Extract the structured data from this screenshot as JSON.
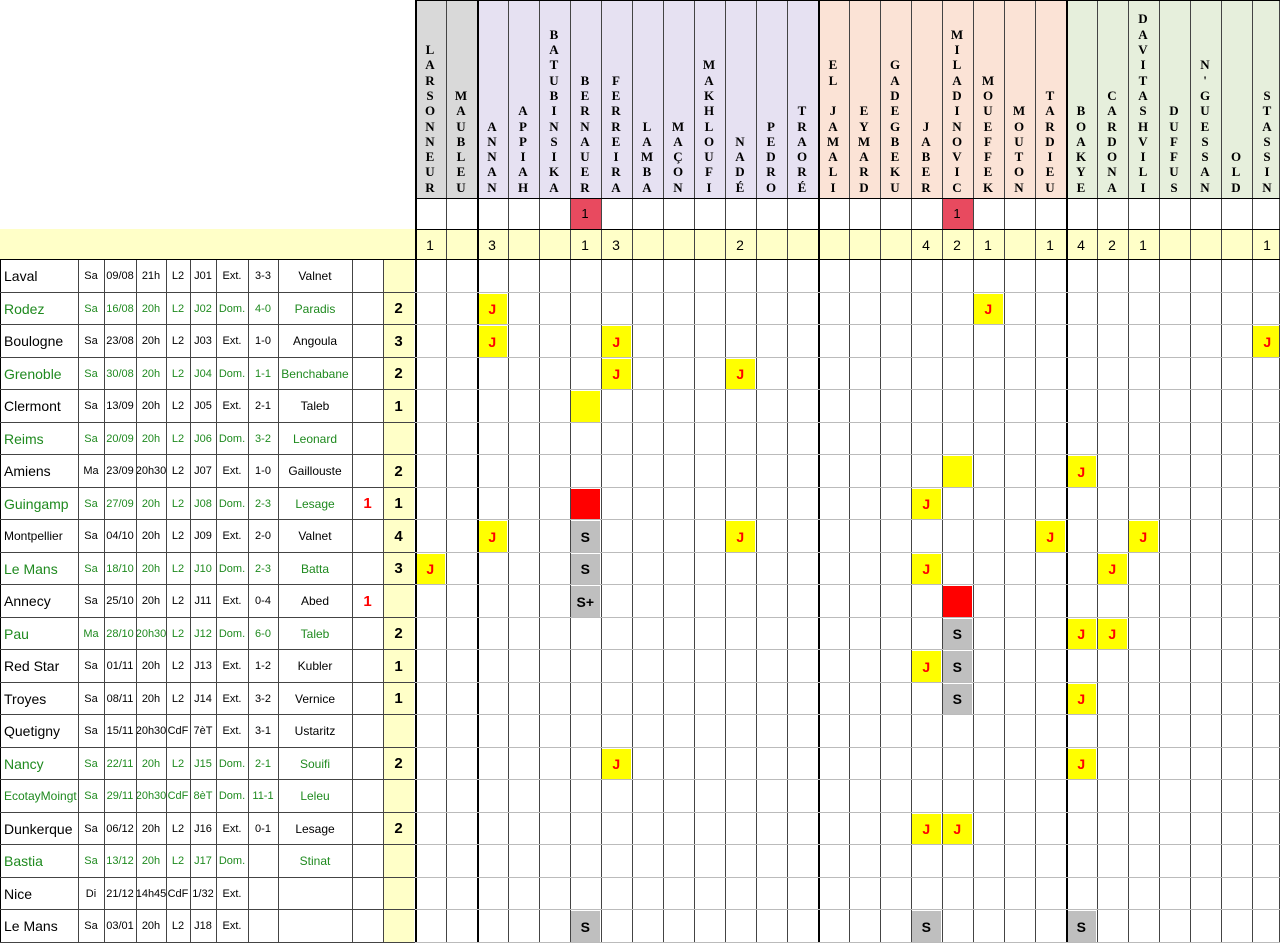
{
  "colors": {
    "green_text": "#1f8a1f",
    "yellow_card": "#ffff00",
    "red_card": "#ff0000",
    "suspended": "#bfbfbf",
    "header_red_bg": "#e84a5f",
    "total_row_bg": "#ffffc8",
    "group_gray": "#d9d9d9",
    "group_lavender": "#e6e1f2",
    "group_salmon": "#fbe3d6",
    "group_green": "#e6efdc"
  },
  "players": [
    {
      "name": "LARSONNEUR",
      "group": "gray",
      "red": "",
      "total": "1"
    },
    {
      "name": "MAUBLEU",
      "group": "gray",
      "red": "",
      "total": ""
    },
    {
      "name": "ANNAN",
      "group": "lavender",
      "red": "",
      "total": "3"
    },
    {
      "name": "APPIAH",
      "group": "lavender",
      "red": "",
      "total": ""
    },
    {
      "name": "BATUBINSIKA",
      "group": "lavender",
      "red": "",
      "total": ""
    },
    {
      "name": "BERNAUER",
      "group": "lavender",
      "red": "1",
      "total": "1"
    },
    {
      "name": "FERREIRA",
      "group": "lavender",
      "red": "",
      "total": "3"
    },
    {
      "name": "LAMBA",
      "group": "lavender",
      "red": "",
      "total": ""
    },
    {
      "name": "MAÇON",
      "group": "lavender",
      "red": "",
      "total": ""
    },
    {
      "name": "MAKHLOUFI",
      "group": "lavender",
      "red": "",
      "total": ""
    },
    {
      "name": "NADÉ",
      "group": "lavender",
      "red": "",
      "total": "2"
    },
    {
      "name": "PEDRO",
      "group": "lavender",
      "red": "",
      "total": ""
    },
    {
      "name": "TRAORÉ",
      "group": "lavender",
      "red": "",
      "total": ""
    },
    {
      "name": "EL JAMALI",
      "group": "salmon",
      "red": "",
      "total": ""
    },
    {
      "name": "EYMARD",
      "group": "salmon",
      "red": "",
      "total": ""
    },
    {
      "name": "GADEGBEKU",
      "group": "salmon",
      "red": "",
      "total": ""
    },
    {
      "name": "JABER",
      "group": "salmon",
      "red": "",
      "total": "4"
    },
    {
      "name": "MILADINOVIC",
      "group": "salmon",
      "red": "1",
      "total": "2"
    },
    {
      "name": "MOUEFFEK",
      "group": "salmon",
      "red": "",
      "total": "1"
    },
    {
      "name": "MOUTON",
      "group": "salmon",
      "red": "",
      "total": ""
    },
    {
      "name": "TARDIEU",
      "group": "salmon",
      "red": "",
      "total": "1"
    },
    {
      "name": "BOAKYE",
      "group": "green",
      "red": "",
      "total": "4"
    },
    {
      "name": "CARDONA",
      "group": "green",
      "red": "",
      "total": "2"
    },
    {
      "name": "DAVITASHVILI",
      "group": "green",
      "red": "",
      "total": "1"
    },
    {
      "name": "DUFFUS",
      "group": "green",
      "red": "",
      "total": ""
    },
    {
      "name": "N'GUESSAN",
      "group": "green",
      "red": "",
      "total": ""
    },
    {
      "name": "OLD",
      "group": "green",
      "red": "",
      "total": ""
    },
    {
      "name": "STASSIN",
      "group": "green",
      "red": "",
      "total": "1"
    }
  ],
  "matches": [
    {
      "opponent": "Laval",
      "day": "Sa",
      "date": "09/08",
      "time": "21h",
      "comp": "L2",
      "round": "J01",
      "venue": "Ext.",
      "score": "3-3",
      "referee": "Valnet",
      "reds": "",
      "yellows": "",
      "marks": []
    },
    {
      "opponent": "Rodez",
      "day": "Sa",
      "date": "16/08",
      "time": "20h",
      "comp": "L2",
      "round": "J02",
      "venue": "Dom.",
      "score": "4-0",
      "referee": "Paradis",
      "reds": "",
      "yellows": "2",
      "marks": [
        [
          2,
          "J"
        ],
        [
          18,
          "J"
        ]
      ]
    },
    {
      "opponent": "Boulogne",
      "day": "Sa",
      "date": "23/08",
      "time": "20h",
      "comp": "L2",
      "round": "J03",
      "venue": "Ext.",
      "score": "1-0",
      "referee": "Angoula",
      "reds": "",
      "yellows": "3",
      "marks": [
        [
          2,
          "J"
        ],
        [
          6,
          "J"
        ],
        [
          27,
          "J"
        ]
      ]
    },
    {
      "opponent": "Grenoble",
      "day": "Sa",
      "date": "30/08",
      "time": "20h",
      "comp": "L2",
      "round": "J04",
      "venue": "Dom.",
      "score": "1-1",
      "referee": "Benchabane",
      "reds": "",
      "yellows": "2",
      "marks": [
        [
          6,
          "J"
        ],
        [
          10,
          "J"
        ]
      ]
    },
    {
      "opponent": "Clermont",
      "day": "Sa",
      "date": "13/09",
      "time": "20h",
      "comp": "L2",
      "round": "J05",
      "venue": "Ext.",
      "score": "2-1",
      "referee": "Taleb",
      "reds": "",
      "yellows": "1",
      "marks": [
        [
          5,
          "Y"
        ]
      ]
    },
    {
      "opponent": "Reims",
      "day": "Sa",
      "date": "20/09",
      "time": "20h",
      "comp": "L2",
      "round": "J06",
      "venue": "Dom.",
      "score": "3-2",
      "referee": "Leonard",
      "reds": "",
      "yellows": "",
      "marks": []
    },
    {
      "opponent": "Amiens",
      "day": "Ma",
      "date": "23/09",
      "time": "20h30",
      "comp": "L2",
      "round": "J07",
      "venue": "Ext.",
      "score": "1-0",
      "referee": "Gaillouste",
      "reds": "",
      "yellows": "2",
      "marks": [
        [
          17,
          "Y"
        ],
        [
          21,
          "J"
        ]
      ]
    },
    {
      "opponent": "Guingamp",
      "day": "Sa",
      "date": "27/09",
      "time": "20h",
      "comp": "L2",
      "round": "J08",
      "venue": "Dom.",
      "score": "2-3",
      "referee": "Lesage",
      "reds": "1",
      "yellows": "1",
      "marks": [
        [
          5,
          "R"
        ],
        [
          16,
          "J"
        ]
      ]
    },
    {
      "opponent": "Montpellier",
      "day": "Sa",
      "date": "04/10",
      "time": "20h",
      "comp": "L2",
      "round": "J09",
      "venue": "Ext.",
      "score": "2-0",
      "referee": "Valnet",
      "reds": "",
      "yellows": "4",
      "marks": [
        [
          2,
          "J"
        ],
        [
          5,
          "S"
        ],
        [
          10,
          "J"
        ],
        [
          20,
          "J"
        ],
        [
          23,
          "J"
        ]
      ]
    },
    {
      "opponent": "Le Mans",
      "day": "Sa",
      "date": "18/10",
      "time": "20h",
      "comp": "L2",
      "round": "J10",
      "venue": "Dom.",
      "score": "2-3",
      "referee": "Batta",
      "reds": "",
      "yellows": "3",
      "marks": [
        [
          0,
          "J"
        ],
        [
          5,
          "S"
        ],
        [
          16,
          "J"
        ],
        [
          22,
          "J"
        ]
      ]
    },
    {
      "opponent": "Annecy",
      "day": "Sa",
      "date": "25/10",
      "time": "20h",
      "comp": "L2",
      "round": "J11",
      "venue": "Ext.",
      "score": "0-4",
      "referee": "Abed",
      "reds": "1",
      "yellows": "",
      "marks": [
        [
          5,
          "S+"
        ],
        [
          17,
          "R"
        ]
      ]
    },
    {
      "opponent": "Pau",
      "day": "Ma",
      "date": "28/10",
      "time": "20h30",
      "comp": "L2",
      "round": "J12",
      "venue": "Dom.",
      "score": "6-0",
      "referee": "Taleb",
      "reds": "",
      "yellows": "2",
      "marks": [
        [
          17,
          "S"
        ],
        [
          21,
          "J"
        ],
        [
          22,
          "J"
        ]
      ]
    },
    {
      "opponent": "Red Star",
      "day": "Sa",
      "date": "01/11",
      "time": "20h",
      "comp": "L2",
      "round": "J13",
      "venue": "Ext.",
      "score": "1-2",
      "referee": "Kubler",
      "reds": "",
      "yellows": "1",
      "marks": [
        [
          16,
          "J"
        ],
        [
          17,
          "S"
        ]
      ]
    },
    {
      "opponent": "Troyes",
      "day": "Sa",
      "date": "08/11",
      "time": "20h",
      "comp": "L2",
      "round": "J14",
      "venue": "Ext.",
      "score": "3-2",
      "referee": "Vernice",
      "reds": "",
      "yellows": "1",
      "marks": [
        [
          17,
          "S"
        ],
        [
          21,
          "J"
        ]
      ]
    },
    {
      "opponent": "Quetigny",
      "day": "Sa",
      "date": "15/11",
      "time": "20h30",
      "comp": "CdF",
      "round": "7èT",
      "venue": "Ext.",
      "score": "3-1",
      "referee": "Ustaritz",
      "reds": "",
      "yellows": "",
      "marks": []
    },
    {
      "opponent": "Nancy",
      "day": "Sa",
      "date": "22/11",
      "time": "20h",
      "comp": "L2",
      "round": "J15",
      "venue": "Dom.",
      "score": "2-1",
      "referee": "Souifi",
      "reds": "",
      "yellows": "2",
      "marks": [
        [
          6,
          "J"
        ],
        [
          21,
          "J"
        ]
      ]
    },
    {
      "opponent": "EcotayMoingt",
      "day": "Sa",
      "date": "29/11",
      "time": "20h30",
      "comp": "CdF",
      "round": "8èT",
      "venue": "Dom.",
      "score": "11-1",
      "referee": "Leleu",
      "reds": "",
      "yellows": "",
      "marks": []
    },
    {
      "opponent": "Dunkerque",
      "day": "Sa",
      "date": "06/12",
      "time": "20h",
      "comp": "L2",
      "round": "J16",
      "venue": "Ext.",
      "score": "0-1",
      "referee": "Lesage",
      "reds": "",
      "yellows": "2",
      "marks": [
        [
          16,
          "J"
        ],
        [
          17,
          "J"
        ]
      ]
    },
    {
      "opponent": "Bastia",
      "day": "Sa",
      "date": "13/12",
      "time": "20h",
      "comp": "L2",
      "round": "J17",
      "venue": "Dom.",
      "score": "",
      "referee": "Stinat",
      "reds": "",
      "yellows": "",
      "marks": []
    },
    {
      "opponent": "Nice",
      "day": "Di",
      "date": "21/12",
      "time": "14h45",
      "comp": "CdF",
      "round": "1/32",
      "venue": "Ext.",
      "score": "",
      "referee": "",
      "reds": "",
      "yellows": "",
      "marks": []
    },
    {
      "opponent": "Le Mans",
      "day": "Sa",
      "date": "03/01",
      "time": "20h",
      "comp": "L2",
      "round": "J18",
      "venue": "Ext.",
      "score": "",
      "referee": "",
      "reds": "",
      "yellows": "",
      "marks": [
        [
          5,
          "S"
        ],
        [
          16,
          "S"
        ],
        [
          21,
          "S"
        ]
      ]
    }
  ]
}
